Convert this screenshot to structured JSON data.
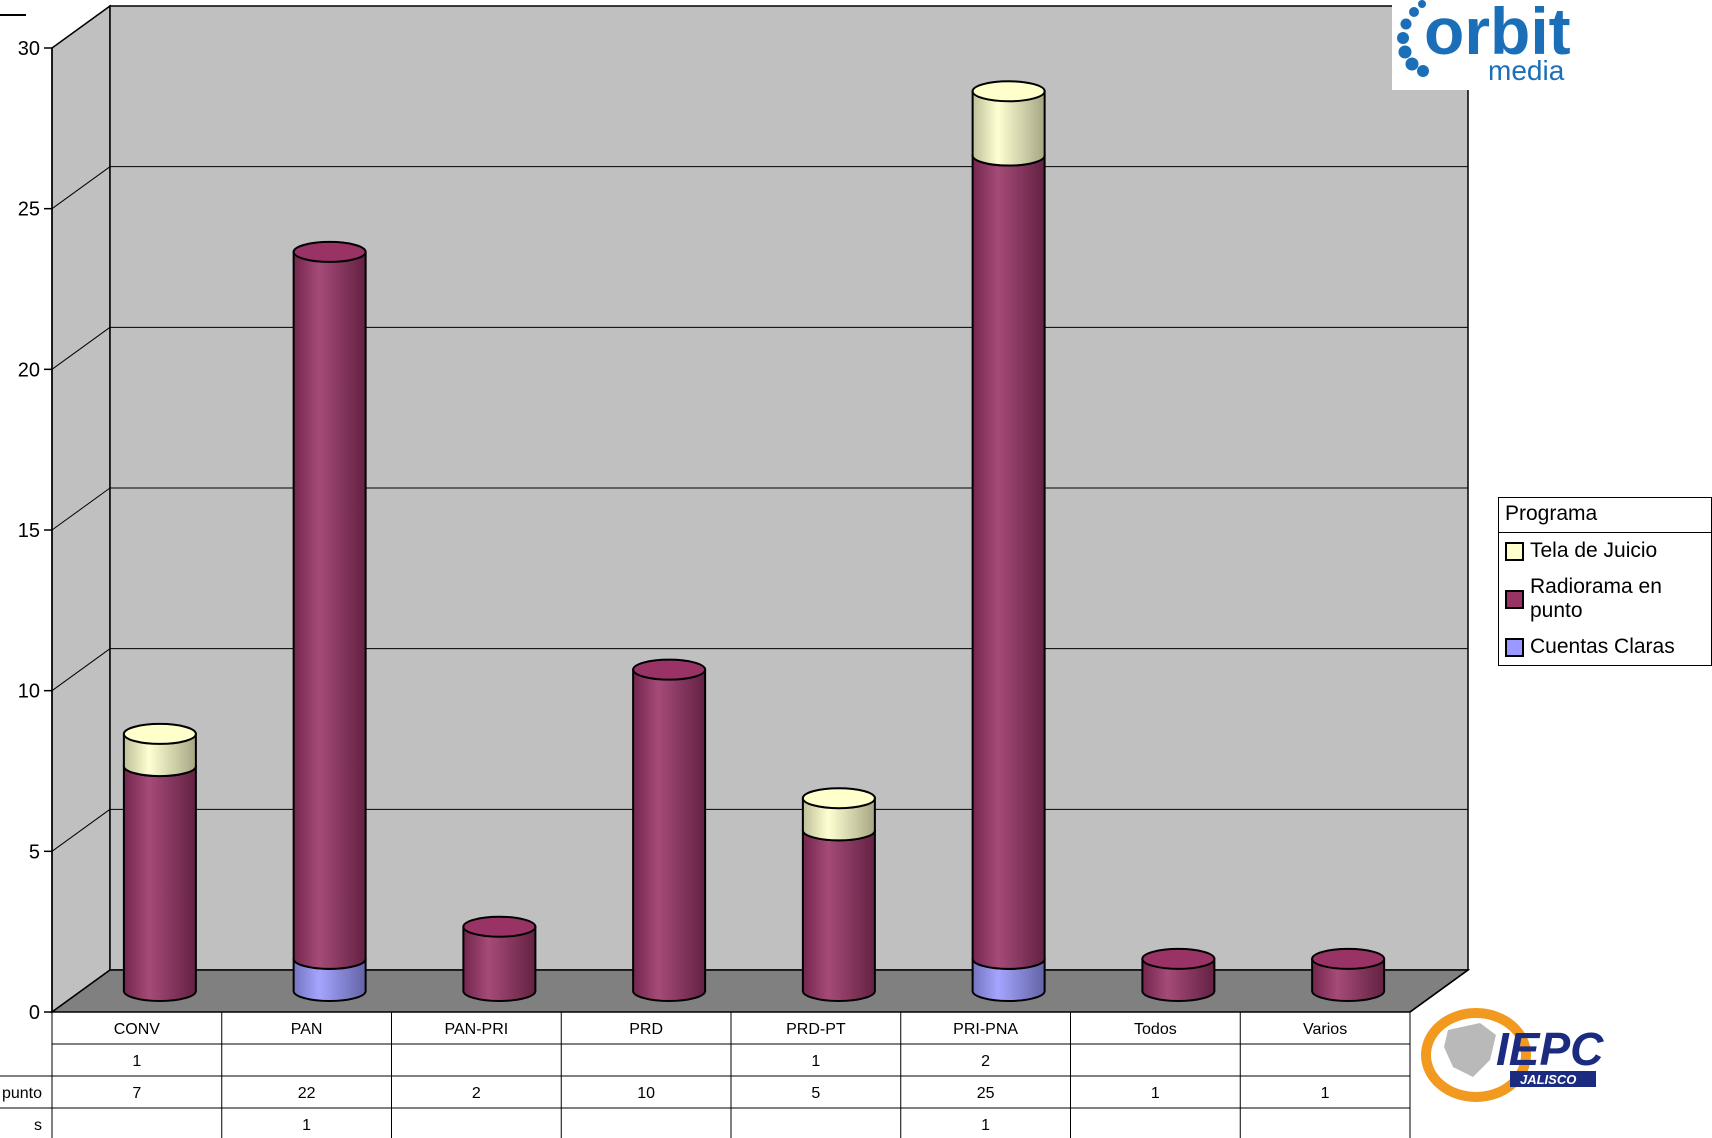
{
  "chart_data": {
    "type": "bar",
    "stacked": true,
    "style": "3d-cylinder",
    "categories": [
      "CONV",
      "PAN",
      "PAN-PRI",
      "PRD",
      "PRD-PT",
      "PRI-PNA",
      "Todos",
      "Varios"
    ],
    "series": [
      {
        "name": "Cuentas Claras",
        "color": "#9999ff",
        "values": [
          null,
          1,
          null,
          null,
          null,
          1,
          null,
          null
        ]
      },
      {
        "name": "Radiorama en punto",
        "color": "#993366",
        "values": [
          7,
          22,
          2,
          10,
          5,
          25,
          1,
          1
        ]
      },
      {
        "name": "Tela de Juicio",
        "color": "#ffffcc",
        "values": [
          1,
          null,
          null,
          null,
          1,
          2,
          null,
          null
        ]
      }
    ],
    "ylim": [
      0,
      30
    ],
    "yticks": [
      0,
      5,
      10,
      15,
      20,
      25,
      30
    ],
    "grid": true,
    "legend": {
      "title": "Programa",
      "position": "right",
      "order": [
        "Tela de Juicio",
        "Radiorama en punto",
        "Cuentas Claras"
      ]
    },
    "data_table": {
      "row_labels_visible": [
        "",
        "punto",
        "s"
      ],
      "rows": [
        [
          "1",
          "",
          "",
          "",
          "1",
          "2",
          "",
          ""
        ],
        [
          "7",
          "22",
          "2",
          "10",
          "5",
          "25",
          "1",
          "1"
        ],
        [
          "",
          "1",
          "",
          "",
          "",
          "1",
          "",
          ""
        ]
      ]
    }
  },
  "logos": {
    "orbit": {
      "word": "orbit",
      "sub": "media",
      "color": "#1b6fb8"
    },
    "iepc": {
      "word": "IEPC",
      "sub": "JALISCO",
      "color": "#1a2b80",
      "accent": "#f29a1f"
    }
  },
  "colors": {
    "wall": "#c0c0c0",
    "floor": "#808080",
    "grid": "#000000"
  }
}
